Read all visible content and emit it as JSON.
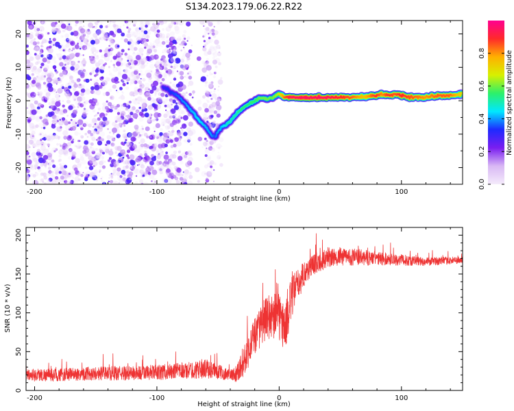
{
  "title": "S134.2023.179.06.22.R22",
  "chart_data": [
    {
      "type": "heatmap",
      "panel": "top",
      "xlabel": "Height of straight line (km)",
      "ylabel": "Frequency (Hz)",
      "xlim": [
        -207,
        150
      ],
      "ylim": [
        -25,
        24
      ],
      "x_ticks": [
        -200,
        -100,
        0,
        100
      ],
      "x_tick_labels": [
        "-200",
        "-100",
        "0",
        "100"
      ],
      "y_ticks": [
        -20,
        -10,
        0,
        10,
        20
      ],
      "y_tick_labels": [
        "-20",
        "-10",
        "0",
        "10",
        "20"
      ],
      "colorbar": {
        "label": "Normalized spectral amplitude",
        "range": [
          0,
          1
        ],
        "ticks": [
          0.0,
          0.2,
          0.4,
          0.6,
          0.8
        ],
        "tick_labels": [
          "0.0",
          "0.2",
          "0.4",
          "0.6",
          "0.8"
        ],
        "stops": [
          "#f4ebfb",
          "#d9b8f4",
          "#7a1ef0",
          "#1e2aff",
          "#00e8ff",
          "#2cf06a",
          "#d8f000",
          "#ffb000",
          "#ff2a2a",
          "#ff0090"
        ]
      },
      "noise_region_x": [
        -207,
        -47
      ],
      "noise_gap_x": [
        -72,
        -62
      ],
      "trace": {
        "x": [
          -95,
          -90,
          -85,
          -80,
          -75,
          -70,
          -65,
          -60,
          -55,
          -52,
          -50,
          -47,
          -45,
          -40,
          -35,
          -30,
          -25,
          -20,
          -15,
          -10,
          -5,
          0,
          5,
          10,
          20,
          40,
          60,
          70,
          80,
          85,
          90,
          95,
          100,
          110,
          120,
          130,
          140,
          150
        ],
        "freq": [
          4,
          3,
          2,
          0.5,
          -1.5,
          -3.5,
          -6,
          -8,
          -10.5,
          -11,
          -9,
          -8,
          -7.5,
          -6,
          -4,
          -2,
          -1,
          0,
          1,
          0.5,
          1,
          2,
          1,
          1,
          1,
          1,
          1,
          1.2,
          1.5,
          2,
          1.5,
          2,
          1.5,
          1,
          1,
          1.5,
          1.5,
          2
        ],
        "amplitude": [
          0.3,
          0.32,
          0.35,
          0.38,
          0.4,
          0.42,
          0.45,
          0.42,
          0.4,
          0.35,
          0.4,
          0.42,
          0.45,
          0.5,
          0.5,
          0.55,
          0.55,
          0.55,
          0.6,
          0.6,
          0.6,
          0.65,
          0.85,
          0.95,
          0.95,
          0.95,
          0.85,
          0.75,
          0.9,
          0.8,
          0.9,
          0.85,
          0.9,
          0.85,
          0.8,
          0.85,
          0.85,
          0.7
        ]
      }
    },
    {
      "type": "line",
      "panel": "bottom",
      "xlabel": "Height of straight line (km)",
      "ylabel": "SNR (10 * v/v)",
      "xlim": [
        -207,
        150
      ],
      "ylim": [
        0,
        210
      ],
      "x_ticks": [
        -200,
        -100,
        0,
        100
      ],
      "x_tick_labels": [
        "-200",
        "-100",
        "0",
        "100"
      ],
      "y_ticks": [
        0,
        50,
        100,
        150,
        200
      ],
      "y_tick_labels": [
        "0",
        "50",
        "100",
        "150",
        "200"
      ],
      "color": "#ee3333",
      "series": [
        {
          "name": "SNR",
          "x": [
            -207,
            -180,
            -150,
            -120,
            -90,
            -70,
            -60,
            -50,
            -40,
            -35,
            -30,
            -20,
            -10,
            -5,
            0,
            5,
            10,
            20,
            30,
            40,
            50,
            60,
            80,
            100,
            120,
            150
          ],
          "values": [
            20,
            20,
            22,
            22,
            24,
            26,
            28,
            24,
            20,
            22,
            35,
            70,
            95,
            95,
            95,
            80,
            120,
            150,
            165,
            170,
            172,
            172,
            170,
            168,
            166,
            168
          ],
          "noise_amplitude": [
            15,
            15,
            16,
            17,
            18,
            20,
            22,
            18,
            12,
            20,
            35,
            45,
            50,
            55,
            60,
            55,
            50,
            30,
            25,
            22,
            20,
            20,
            16,
            13,
            10,
            8
          ]
        }
      ]
    }
  ]
}
